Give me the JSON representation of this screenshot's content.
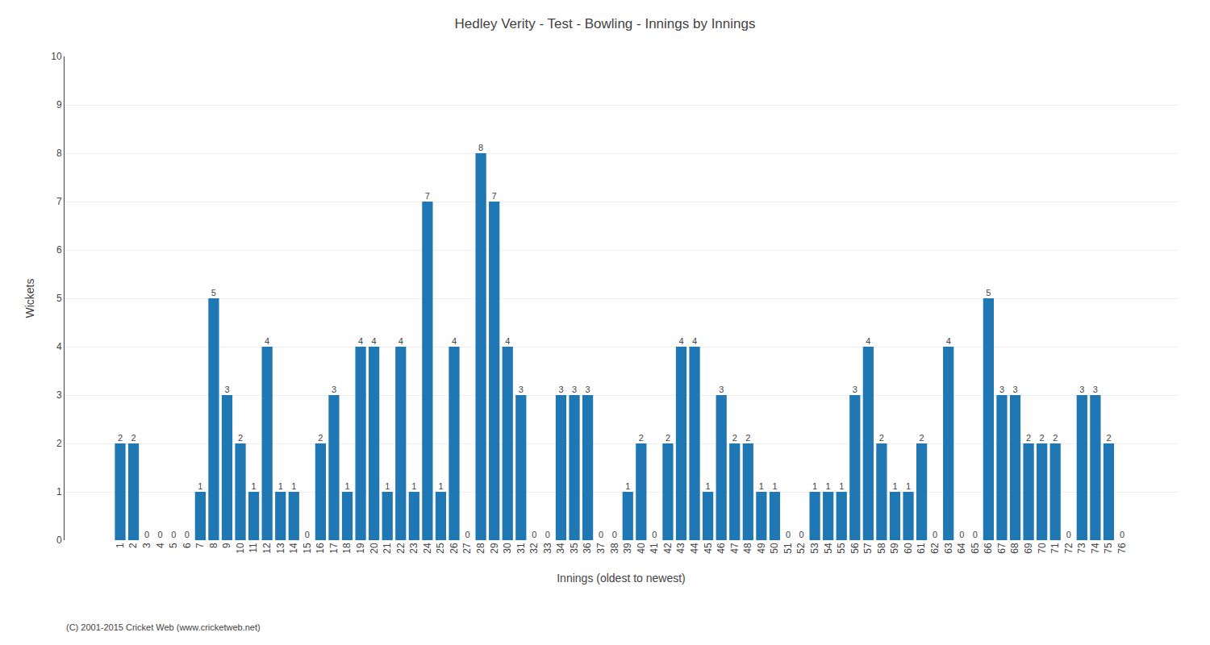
{
  "chart_data": {
    "type": "bar",
    "title": "Hedley Verity - Test - Bowling - Innings by Innings",
    "xlabel": "Innings (oldest to newest)",
    "ylabel": "Wickets",
    "annotations": [
      "(C) 2001-2015 Cricket Web (www.cricketweb.net)"
    ],
    "categories": [
      "1",
      "2",
      "3",
      "4",
      "5",
      "6",
      "7",
      "8",
      "9",
      "10",
      "11",
      "12",
      "13",
      "14",
      "15",
      "16",
      "17",
      "18",
      "19",
      "20",
      "21",
      "22",
      "23",
      "24",
      "25",
      "26",
      "27",
      "28",
      "29",
      "30",
      "31",
      "32",
      "33",
      "34",
      "35",
      "36",
      "37",
      "38",
      "39",
      "40",
      "41",
      "42",
      "43",
      "44",
      "45",
      "46",
      "47",
      "48",
      "49",
      "50",
      "51",
      "52",
      "53",
      "54",
      "55",
      "56",
      "57",
      "58",
      "59",
      "60",
      "61",
      "62",
      "63",
      "64",
      "65",
      "66",
      "67",
      "68",
      "69",
      "70",
      "71",
      "72",
      "73",
      "74",
      "75",
      "76"
    ],
    "values": [
      2,
      2,
      0,
      0,
      0,
      0,
      1,
      5,
      3,
      2,
      1,
      4,
      1,
      1,
      0,
      2,
      3,
      1,
      4,
      4,
      1,
      4,
      1,
      7,
      1,
      4,
      0,
      8,
      7,
      4,
      3,
      0,
      0,
      3,
      3,
      3,
      0,
      0,
      1,
      2,
      0,
      2,
      4,
      4,
      1,
      3,
      2,
      2,
      1,
      1,
      0,
      0,
      1,
      1,
      1,
      3,
      4,
      2,
      1,
      1,
      2,
      0,
      4,
      0,
      0,
      5,
      3,
      3,
      2,
      2,
      2,
      0,
      3,
      3,
      2,
      0
    ],
    "ylim": [
      0,
      10
    ],
    "yticks": [
      0,
      1,
      2,
      3,
      4,
      5,
      6,
      7,
      8,
      9,
      10
    ],
    "grid": true,
    "data_labels": true
  }
}
